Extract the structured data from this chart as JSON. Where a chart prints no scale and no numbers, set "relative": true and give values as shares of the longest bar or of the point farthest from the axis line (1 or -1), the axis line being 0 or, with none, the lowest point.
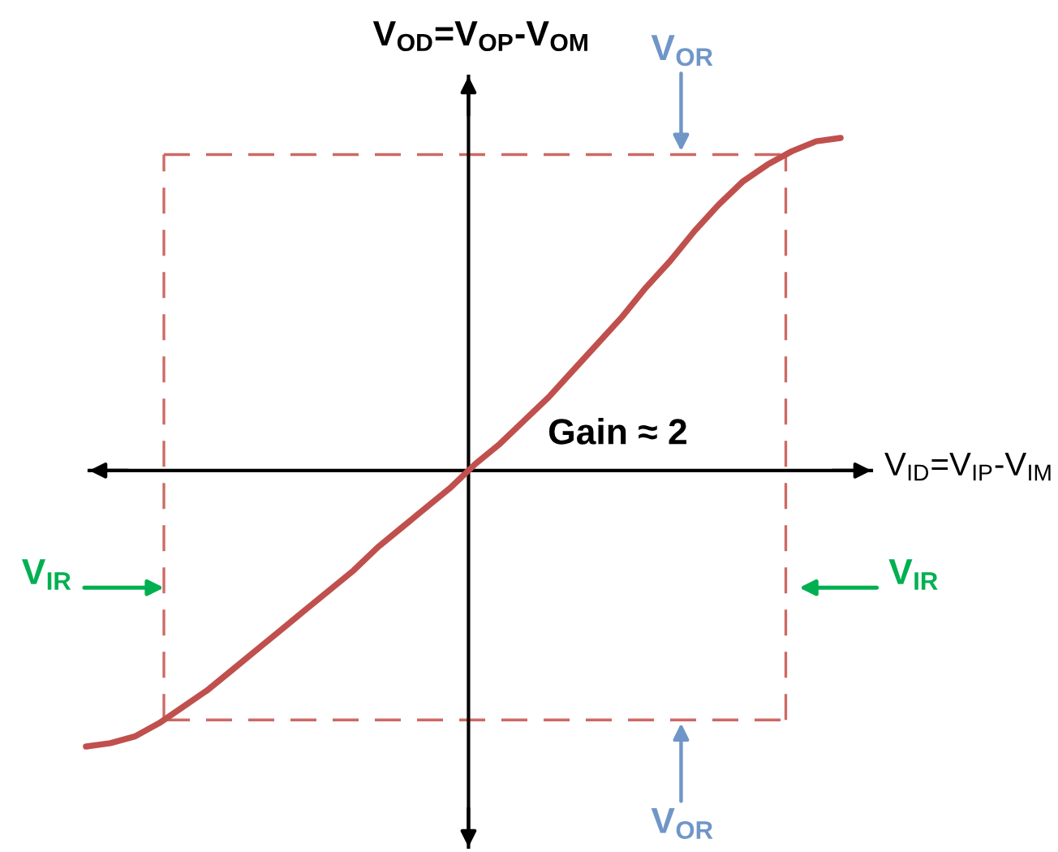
{
  "chart_data": {
    "type": "line",
    "relative": true,
    "xlabel": "V$_{ID}$=V$_{IP}$-V$_{IM}$",
    "ylabel": "V$_{OD}$=V$_{OP}$-V$_{OM}$",
    "categories": [
      null,
      null,
      null,
      null,
      null,
      null,
      null,
      null,
      null,
      null,
      null,
      null,
      null,
      null,
      null,
      null,
      null,
      null,
      null,
      null,
      null,
      null,
      null,
      null,
      null,
      null,
      null,
      null,
      null,
      null,
      null,
      null
    ],
    "series": [
      {
        "color": "#c0504d",
        "values": [
          -0.83,
          -0.82,
          -0.8,
          -0.76,
          -0.71,
          -0.66,
          -0.6,
          -0.54,
          -0.48,
          -0.42,
          -0.36,
          -0.3,
          -0.23,
          -0.17,
          -0.11,
          -0.05,
          0.02,
          0.08,
          0.15,
          0.22,
          0.3,
          0.38,
          0.46,
          0.55,
          0.63,
          0.72,
          0.8,
          0.87,
          0.92,
          0.96,
          0.99,
          1.0
        ]
      }
    ],
    "ref_lines": [
      {
        "axis": "y",
        "value": 0.95,
        "label": "V$_{OR}$",
        "color": "#cd6964",
        "line_style": "dashed"
      },
      {
        "axis": "y",
        "value": -0.75,
        "label": "V$_{OR}$",
        "color": "#cd6964",
        "line_style": "dashed"
      }
    ],
    "annotations": [
      "Gain ≈ 2",
      "V$_{IR}$",
      "V$_{IR}$"
    ]
  }
}
